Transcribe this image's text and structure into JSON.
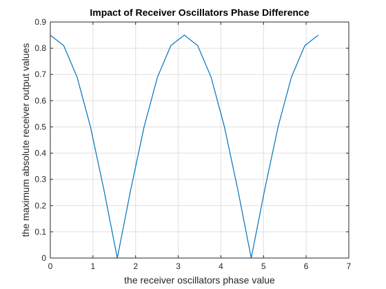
{
  "chart_data": {
    "type": "line",
    "title": "Impact of Receiver Oscillators Phase Difference",
    "xlabel": "the receiver oscillators phase value",
    "ylabel": "the maximum absolute receiver output values",
    "xlim": [
      0,
      7
    ],
    "ylim": [
      0,
      0.9
    ],
    "xticks": [
      "0",
      "1",
      "2",
      "3",
      "4",
      "5",
      "6",
      "7"
    ],
    "yticks": [
      "0",
      "0.1",
      "0.2",
      "0.3",
      "0.4",
      "0.5",
      "0.6",
      "0.7",
      "0.8",
      "0.9"
    ],
    "grid": true,
    "series": [
      {
        "color": "#0072bd",
        "x": [
          0,
          0.314,
          0.628,
          0.942,
          1.257,
          1.571,
          1.885,
          2.199,
          2.513,
          2.827,
          3.142,
          3.456,
          3.77,
          4.084,
          4.398,
          4.712,
          5.027,
          5.341,
          5.655,
          5.969,
          6.283
        ],
        "y": [
          0.85,
          0.81,
          0.69,
          0.5,
          0.26,
          0.0,
          0.26,
          0.5,
          0.69,
          0.81,
          0.85,
          0.81,
          0.69,
          0.5,
          0.26,
          0.0,
          0.26,
          0.5,
          0.69,
          0.81,
          0.85
        ]
      }
    ]
  }
}
